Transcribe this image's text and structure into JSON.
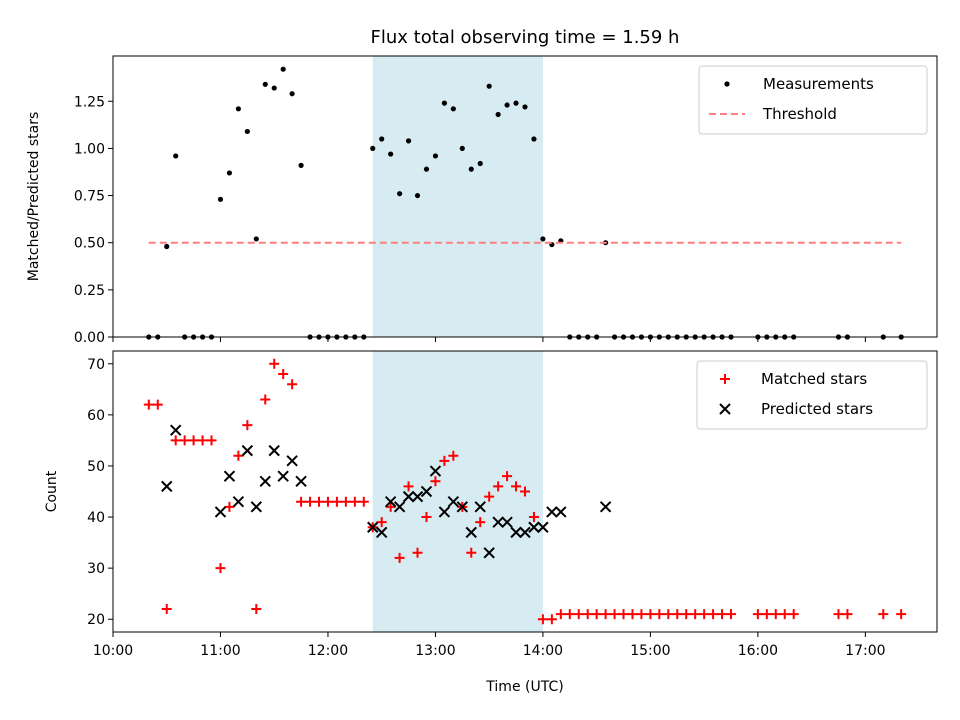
{
  "chart_data": [
    {
      "type": "scatter",
      "title": "Flux total observing time = 1.59 h",
      "xlabel": "",
      "ylabel": "Matched/Predicted stars",
      "xlim": [
        "10:00",
        "17:40"
      ],
      "ylim": [
        0,
        1.49
      ],
      "yticks": [
        "0.00",
        "0.25",
        "0.50",
        "0.75",
        "1.00",
        "1.25"
      ],
      "highlight_span": {
        "from": "12:25",
        "to": "14:00",
        "color": "#add8e6"
      },
      "legend_position": "upper right",
      "series": [
        {
          "name": "Measurements",
          "marker": "dot",
          "color": "#000000",
          "points": [
            [
              "10:20",
              0
            ],
            [
              "10:25",
              0
            ],
            [
              "10:30",
              0.48
            ],
            [
              "10:35",
              0.96
            ],
            [
              "10:40",
              0
            ],
            [
              "10:45",
              0
            ],
            [
              "10:50",
              0
            ],
            [
              "10:55",
              0
            ],
            [
              "11:00",
              0.73
            ],
            [
              "11:05",
              0.87
            ],
            [
              "11:10",
              1.21
            ],
            [
              "11:15",
              1.09
            ],
            [
              "11:20",
              0.52
            ],
            [
              "11:25",
              1.34
            ],
            [
              "11:30",
              1.32
            ],
            [
              "11:35",
              1.42
            ],
            [
              "11:40",
              1.29
            ],
            [
              "11:45",
              0.91
            ],
            [
              "11:50",
              0
            ],
            [
              "11:55",
              0
            ],
            [
              "12:00",
              0
            ],
            [
              "12:05",
              0
            ],
            [
              "12:10",
              0
            ],
            [
              "12:15",
              0
            ],
            [
              "12:20",
              0
            ],
            [
              "12:25",
              1.0
            ],
            [
              "12:30",
              1.05
            ],
            [
              "12:35",
              0.97
            ],
            [
              "12:40",
              0.76
            ],
            [
              "12:45",
              1.04
            ],
            [
              "12:50",
              0.75
            ],
            [
              "12:55",
              0.89
            ],
            [
              "13:00",
              0.96
            ],
            [
              "13:05",
              1.24
            ],
            [
              "13:10",
              1.21
            ],
            [
              "13:15",
              1.0
            ],
            [
              "13:20",
              0.89
            ],
            [
              "13:25",
              0.92
            ],
            [
              "13:30",
              1.33
            ],
            [
              "13:35",
              1.18
            ],
            [
              "13:40",
              1.23
            ],
            [
              "13:45",
              1.24
            ],
            [
              "13:50",
              1.22
            ],
            [
              "13:55",
              1.05
            ],
            [
              "14:00",
              0.52
            ],
            [
              "14:05",
              0.49
            ],
            [
              "14:10",
              0.51
            ],
            [
              "14:15",
              0
            ],
            [
              "14:20",
              0
            ],
            [
              "14:25",
              0
            ],
            [
              "14:30",
              0
            ],
            [
              "14:35",
              0.5
            ],
            [
              "14:40",
              0
            ],
            [
              "14:45",
              0
            ],
            [
              "14:50",
              0
            ],
            [
              "14:55",
              0
            ],
            [
              "15:00",
              0
            ],
            [
              "15:05",
              0
            ],
            [
              "15:10",
              0
            ],
            [
              "15:15",
              0
            ],
            [
              "15:20",
              0
            ],
            [
              "15:25",
              0
            ],
            [
              "15:30",
              0
            ],
            [
              "15:35",
              0
            ],
            [
              "15:40",
              0
            ],
            [
              "15:45",
              0
            ],
            [
              "16:00",
              0
            ],
            [
              "16:05",
              0
            ],
            [
              "16:10",
              0
            ],
            [
              "16:15",
              0
            ],
            [
              "16:20",
              0
            ],
            [
              "16:45",
              0
            ],
            [
              "16:50",
              0
            ],
            [
              "17:10",
              0
            ],
            [
              "17:20",
              0
            ]
          ]
        },
        {
          "name": "Threshold",
          "style": "dashed-line",
          "color": "#ff7f7f",
          "points": [
            [
              "10:20",
              0.5
            ],
            [
              "17:20",
              0.5
            ]
          ]
        }
      ]
    },
    {
      "type": "scatter",
      "xlabel": "Time (UTC)",
      "ylabel": "Count",
      "xlim": [
        "10:00",
        "17:40"
      ],
      "ylim": [
        17.5,
        72.5
      ],
      "xticks": [
        "10:00",
        "11:00",
        "12:00",
        "13:00",
        "14:00",
        "15:00",
        "16:00",
        "17:00"
      ],
      "yticks": [
        "20",
        "30",
        "40",
        "50",
        "60",
        "70"
      ],
      "highlight_span": {
        "from": "12:25",
        "to": "14:00",
        "color": "#add8e6"
      },
      "legend_position": "upper right",
      "series": [
        {
          "name": "Matched stars",
          "marker": "plus",
          "color": "#ff0000",
          "points": [
            [
              "10:20",
              62
            ],
            [
              "10:25",
              62
            ],
            [
              "10:30",
              22
            ],
            [
              "10:35",
              55
            ],
            [
              "10:40",
              55
            ],
            [
              "10:45",
              55
            ],
            [
              "10:50",
              55
            ],
            [
              "10:55",
              55
            ],
            [
              "11:00",
              30
            ],
            [
              "11:05",
              42
            ],
            [
              "11:10",
              52
            ],
            [
              "11:15",
              58
            ],
            [
              "11:20",
              22
            ],
            [
              "11:25",
              63
            ],
            [
              "11:30",
              70
            ],
            [
              "11:35",
              68
            ],
            [
              "11:40",
              66
            ],
            [
              "11:45",
              43
            ],
            [
              "11:50",
              43
            ],
            [
              "11:55",
              43
            ],
            [
              "12:00",
              43
            ],
            [
              "12:05",
              43
            ],
            [
              "12:10",
              43
            ],
            [
              "12:15",
              43
            ],
            [
              "12:20",
              43
            ],
            [
              "12:25",
              38
            ],
            [
              "12:30",
              39
            ],
            [
              "12:35",
              42
            ],
            [
              "12:40",
              32
            ],
            [
              "12:45",
              46
            ],
            [
              "12:50",
              33
            ],
            [
              "12:55",
              40
            ],
            [
              "13:00",
              47
            ],
            [
              "13:05",
              51
            ],
            [
              "13:10",
              52
            ],
            [
              "13:15",
              42
            ],
            [
              "13:20",
              33
            ],
            [
              "13:25",
              39
            ],
            [
              "13:30",
              44
            ],
            [
              "13:35",
              46
            ],
            [
              "13:40",
              48
            ],
            [
              "13:45",
              46
            ],
            [
              "13:50",
              45
            ],
            [
              "13:55",
              40
            ],
            [
              "14:00",
              20
            ],
            [
              "14:05",
              20
            ],
            [
              "14:10",
              21
            ],
            [
              "14:15",
              21
            ],
            [
              "14:20",
              21
            ],
            [
              "14:25",
              21
            ],
            [
              "14:30",
              21
            ],
            [
              "14:35",
              21
            ],
            [
              "14:40",
              21
            ],
            [
              "14:45",
              21
            ],
            [
              "14:50",
              21
            ],
            [
              "14:55",
              21
            ],
            [
              "15:00",
              21
            ],
            [
              "15:05",
              21
            ],
            [
              "15:10",
              21
            ],
            [
              "15:15",
              21
            ],
            [
              "15:20",
              21
            ],
            [
              "15:25",
              21
            ],
            [
              "15:30",
              21
            ],
            [
              "15:35",
              21
            ],
            [
              "15:40",
              21
            ],
            [
              "15:45",
              21
            ],
            [
              "16:00",
              21
            ],
            [
              "16:05",
              21
            ],
            [
              "16:10",
              21
            ],
            [
              "16:15",
              21
            ],
            [
              "16:20",
              21
            ],
            [
              "16:45",
              21
            ],
            [
              "16:50",
              21
            ],
            [
              "17:10",
              21
            ],
            [
              "17:20",
              21
            ]
          ]
        },
        {
          "name": "Predicted stars",
          "marker": "x",
          "color": "#000000",
          "points": [
            [
              "10:30",
              46
            ],
            [
              "10:35",
              57
            ],
            [
              "11:00",
              41
            ],
            [
              "11:05",
              48
            ],
            [
              "11:10",
              43
            ],
            [
              "11:15",
              53
            ],
            [
              "11:20",
              42
            ],
            [
              "11:25",
              47
            ],
            [
              "11:30",
              53
            ],
            [
              "11:35",
              48
            ],
            [
              "11:40",
              51
            ],
            [
              "11:45",
              47
            ],
            [
              "12:25",
              38
            ],
            [
              "12:30",
              37
            ],
            [
              "12:35",
              43
            ],
            [
              "12:40",
              42
            ],
            [
              "12:45",
              44
            ],
            [
              "12:50",
              44
            ],
            [
              "12:55",
              45
            ],
            [
              "13:00",
              49
            ],
            [
              "13:05",
              41
            ],
            [
              "13:10",
              43
            ],
            [
              "13:15",
              42
            ],
            [
              "13:20",
              37
            ],
            [
              "13:25",
              42
            ],
            [
              "13:30",
              33
            ],
            [
              "13:35",
              39
            ],
            [
              "13:40",
              39
            ],
            [
              "13:45",
              37
            ],
            [
              "13:50",
              37
            ],
            [
              "13:55",
              38
            ],
            [
              "14:00",
              38
            ],
            [
              "14:05",
              41
            ],
            [
              "14:10",
              41
            ],
            [
              "14:35",
              42
            ]
          ]
        }
      ]
    }
  ]
}
